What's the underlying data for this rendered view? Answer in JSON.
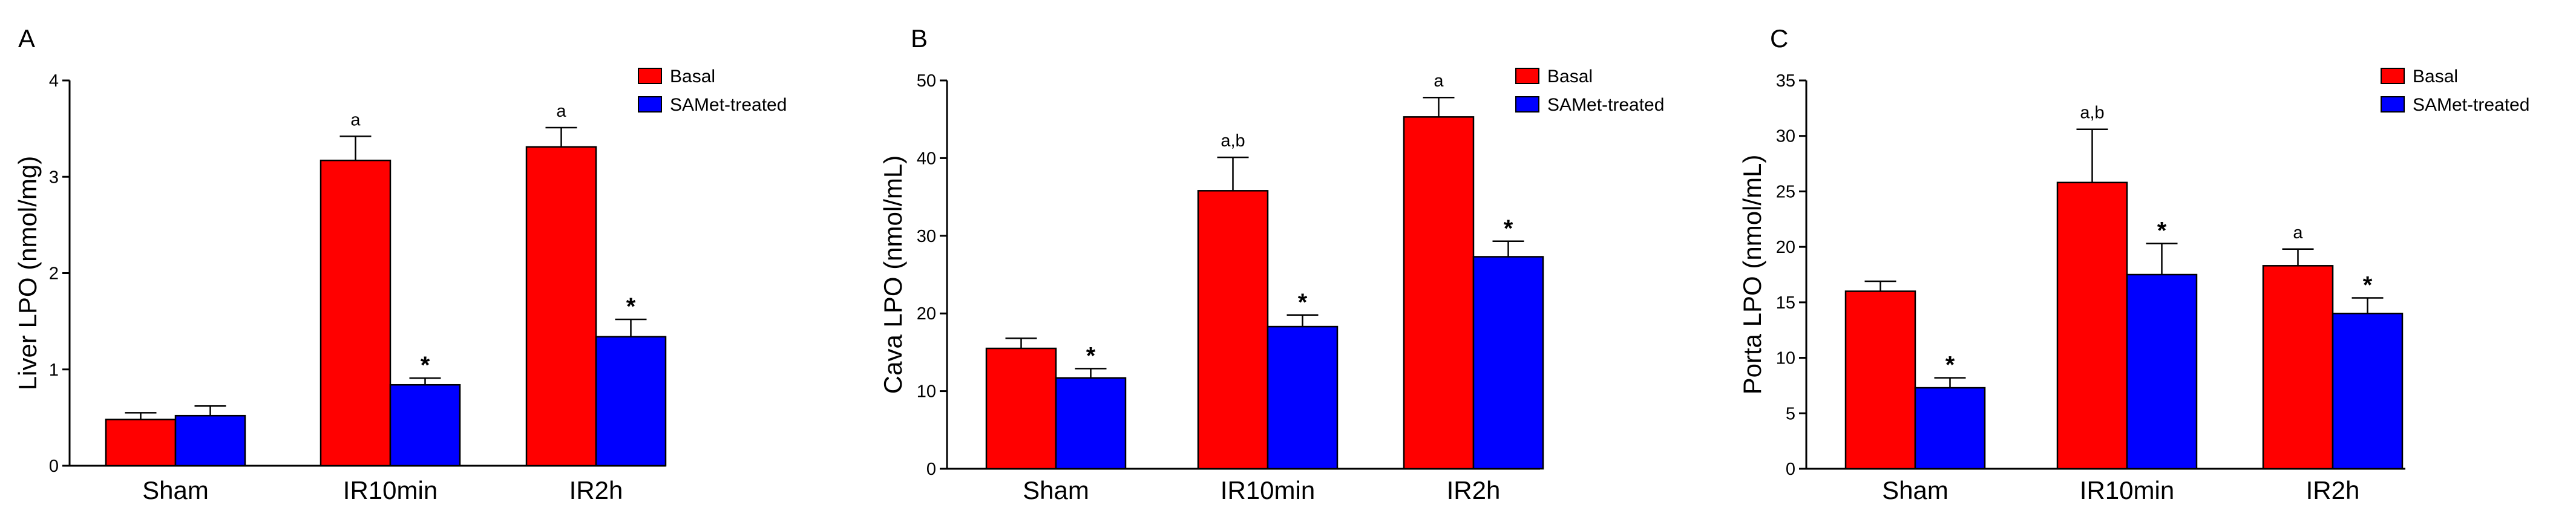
{
  "colors": {
    "basal": "#ff0000",
    "treated": "#0000ff",
    "axis": "#000000"
  },
  "chart_data": [
    {
      "panel": "A",
      "type": "bar",
      "ylabel": "Liver LPO (nmol/mg)",
      "xlabel": "",
      "ylim": [
        0,
        4
      ],
      "yticks": [
        "0",
        "1",
        "2",
        "3",
        "4"
      ],
      "categories": [
        "Sham",
        "IR10min",
        "IR2h"
      ],
      "legend": [
        "Basal",
        "SAMet-treated"
      ],
      "series": [
        {
          "name": "Basal",
          "values": [
            0.48,
            3.17,
            3.31
          ],
          "errors": [
            0.07,
            0.25,
            0.2
          ],
          "annotations": [
            "",
            "a",
            "a"
          ]
        },
        {
          "name": "SAMet-treated",
          "values": [
            0.52,
            0.84,
            1.34
          ],
          "errors": [
            0.1,
            0.07,
            0.18
          ],
          "annotations": [
            "",
            "*",
            "*"
          ]
        }
      ]
    },
    {
      "panel": "B",
      "type": "bar",
      "ylabel": "Cava LPO (nmol/mL)",
      "xlabel": "",
      "ylim": [
        0,
        50
      ],
      "yticks": [
        "0",
        "10",
        "20",
        "30",
        "40",
        "50"
      ],
      "categories": [
        "Sham",
        "IR10min",
        "IR2h"
      ],
      "legend": [
        "Basal",
        "SAMet-treated"
      ],
      "series": [
        {
          "name": "Basal",
          "values": [
            15.5,
            35.8,
            45.3
          ],
          "errors": [
            1.3,
            4.3,
            2.5
          ],
          "annotations": [
            "",
            "a,b",
            "a"
          ]
        },
        {
          "name": "SAMet-treated",
          "values": [
            11.7,
            18.3,
            27.3
          ],
          "errors": [
            1.2,
            1.5,
            2.0
          ],
          "annotations": [
            "*",
            "*",
            "*"
          ]
        }
      ]
    },
    {
      "panel": "C",
      "type": "bar",
      "ylabel": "Porta LPO (nmol/mL)",
      "xlabel": "",
      "ylim": [
        0,
        35
      ],
      "yticks": [
        "0",
        "5",
        "10",
        "15",
        "20",
        "25",
        "30",
        "35"
      ],
      "categories": [
        "Sham",
        "IR10min",
        "IR2h"
      ],
      "legend": [
        "Basal",
        "SAMet-treated"
      ],
      "series": [
        {
          "name": "Basal",
          "values": [
            16.0,
            25.8,
            18.3
          ],
          "errors": [
            0.9,
            4.8,
            1.5
          ],
          "annotations": [
            "",
            "a,b",
            "a"
          ]
        },
        {
          "name": "SAMet-treated",
          "values": [
            7.3,
            17.5,
            14.0
          ],
          "errors": [
            0.9,
            2.8,
            1.4
          ],
          "annotations": [
            "*",
            "*",
            "*"
          ]
        }
      ]
    }
  ]
}
